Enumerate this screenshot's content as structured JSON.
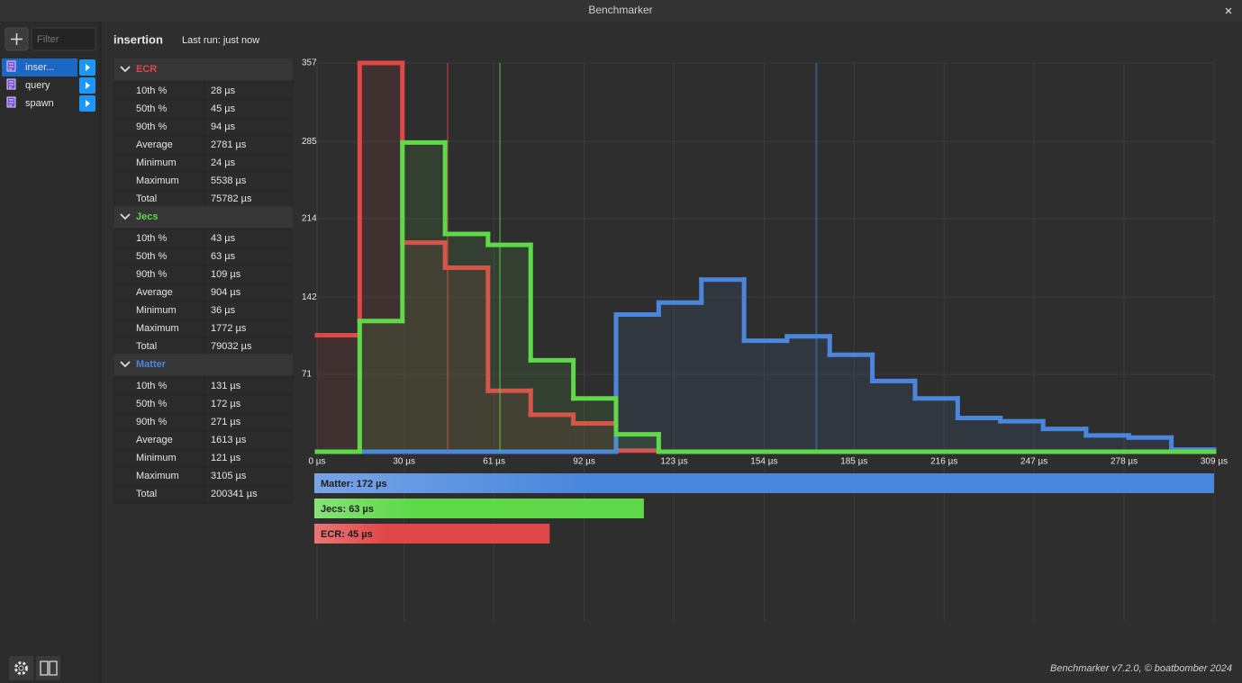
{
  "window": {
    "title": "Benchmarker",
    "close": "×"
  },
  "sidebar": {
    "filter_placeholder": "Filter",
    "benchmarks": [
      "inser...",
      "query",
      "spawn"
    ],
    "selected": 0
  },
  "header": {
    "title": "insertion",
    "status": "Last run: just now"
  },
  "stats": [
    {
      "name": "ECR",
      "color": "#e04848",
      "rows": [
        [
          "10th %",
          "28 µs"
        ],
        [
          "50th %",
          "45 µs"
        ],
        [
          "90th %",
          "94 µs"
        ],
        [
          "Average",
          "2781 µs"
        ],
        [
          "Minimum",
          "24 µs"
        ],
        [
          "Maximum",
          "5538 µs"
        ],
        [
          "Total",
          "75782 µs"
        ]
      ]
    },
    {
      "name": "Jecs",
      "color": "#5fd84a",
      "rows": [
        [
          "10th %",
          "43 µs"
        ],
        [
          "50th %",
          "63 µs"
        ],
        [
          "90th %",
          "109 µs"
        ],
        [
          "Average",
          "904 µs"
        ],
        [
          "Minimum",
          "36 µs"
        ],
        [
          "Maximum",
          "1772 µs"
        ],
        [
          "Total",
          "79032 µs"
        ]
      ]
    },
    {
      "name": "Matter",
      "color": "#4a86dc",
      "rows": [
        [
          "10th %",
          "131 µs"
        ],
        [
          "50th %",
          "172 µs"
        ],
        [
          "90th %",
          "271 µs"
        ],
        [
          "Average",
          "1613 µs"
        ],
        [
          "Minimum",
          "121 µs"
        ],
        [
          "Maximum",
          "3105 µs"
        ],
        [
          "Total",
          "200341 µs"
        ]
      ]
    }
  ],
  "chart_data": {
    "type": "histogram",
    "bins": [
      0,
      14.7,
      29.4,
      44.1,
      58.9,
      73.6,
      88.3,
      103,
      117.7,
      132.4,
      147.1,
      161.9,
      176.6,
      191.3,
      206,
      220.7,
      235.4,
      250.1,
      264.9,
      279.6,
      294.3,
      309
    ],
    "series": [
      {
        "name": "ECR",
        "color": "#e04848",
        "values": [
          107,
          357,
          192,
          169,
          56,
          34,
          26,
          1,
          0,
          0,
          0,
          0,
          0,
          0,
          0,
          0,
          0,
          0,
          0,
          0,
          0
        ],
        "median": 45,
        "median_label": "ECR: 45 µs"
      },
      {
        "name": "Jecs",
        "color": "#5fd84a",
        "values": [
          0,
          120,
          284,
          200,
          190,
          84,
          49,
          16,
          0,
          0,
          0,
          0,
          0,
          0,
          0,
          0,
          0,
          0,
          0,
          0,
          0
        ],
        "median": 63,
        "median_label": "Jecs: 63 µs"
      },
      {
        "name": "Matter",
        "color": "#4a86dc",
        "values": [
          0,
          0,
          0,
          0,
          0,
          0,
          0,
          126,
          137,
          158,
          102,
          106,
          89,
          65,
          49,
          31,
          28,
          21,
          15,
          13,
          2
        ],
        "median": 172,
        "median_label": "Matter: 172 µs"
      }
    ],
    "xlim": [
      0,
      309
    ],
    "xticks": [
      {
        "value": 0,
        "label": "0 µs"
      },
      {
        "value": 30,
        "label": "30 µs"
      },
      {
        "value": 61,
        "label": "61 µs"
      },
      {
        "value": 92,
        "label": "92 µs"
      },
      {
        "value": 123,
        "label": "123 µs"
      },
      {
        "value": 154,
        "label": "154 µs"
      },
      {
        "value": 185,
        "label": "185 µs"
      },
      {
        "value": 216,
        "label": "216 µs"
      },
      {
        "value": 247,
        "label": "247 µs"
      },
      {
        "value": 278,
        "label": "278 µs"
      },
      {
        "value": 309,
        "label": "309 µs"
      }
    ],
    "ylim": [
      0,
      357
    ],
    "yticks": [
      71,
      142,
      214,
      285,
      357
    ],
    "grid": true
  },
  "footer": "Benchmarker v7.2.0, © boatbomber 2024"
}
